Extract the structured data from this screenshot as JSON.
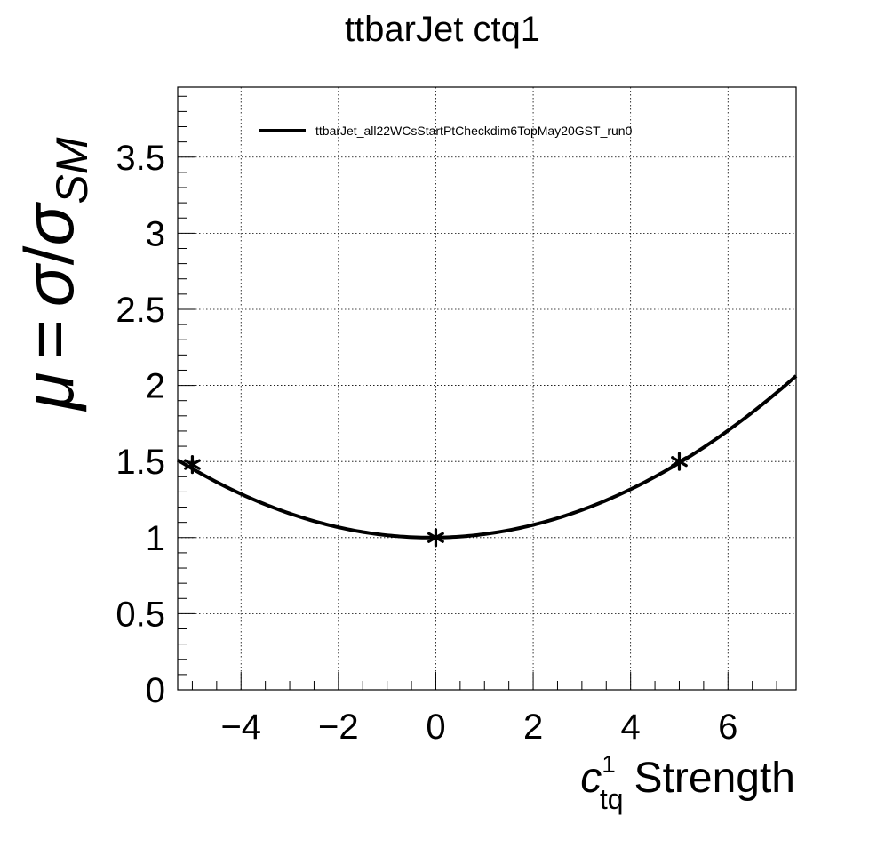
{
  "chart_data": {
    "type": "line",
    "title": "ttbarJet ctq1",
    "xlabel": {
      "symbol": "c",
      "superscript": "1",
      "subscript": "tq",
      "text": "Strength"
    },
    "ylabel": {
      "mu": "μ",
      "equals": "=",
      "sigma": "σ",
      "slash": "/",
      "sigma_sm": "σ",
      "sm": "SM"
    },
    "xlim": [
      -5.3,
      7.4
    ],
    "ylim": [
      0,
      3.96
    ],
    "x_ticks": [
      -4,
      -2,
      0,
      2,
      4,
      6
    ],
    "x_tick_labels": [
      "−4",
      "−2",
      "0",
      "2",
      "4",
      "6"
    ],
    "y_ticks": [
      0,
      0.5,
      1,
      1.5,
      2,
      2.5,
      3,
      3.5
    ],
    "y_tick_labels": [
      "0",
      "0.5",
      "1",
      "1.5",
      "2",
      "2.5",
      "3",
      "3.5"
    ],
    "grid": true,
    "legend_position": "top-left",
    "series": [
      {
        "name": "ttbarJet_all22WCsStartPtCheckdim6TopMay20GST_run0",
        "style": "line",
        "fit": {
          "a": 0.01888,
          "b": 0.00388,
          "c": 1.0
        },
        "x_range": [
          -5.3,
          7.4
        ]
      },
      {
        "style": "markers",
        "marker": "star",
        "points": [
          {
            "x": -5.0,
            "y": 1.48
          },
          {
            "x": 0.0,
            "y": 1.0
          },
          {
            "x": 5.0,
            "y": 1.5
          }
        ]
      }
    ]
  }
}
